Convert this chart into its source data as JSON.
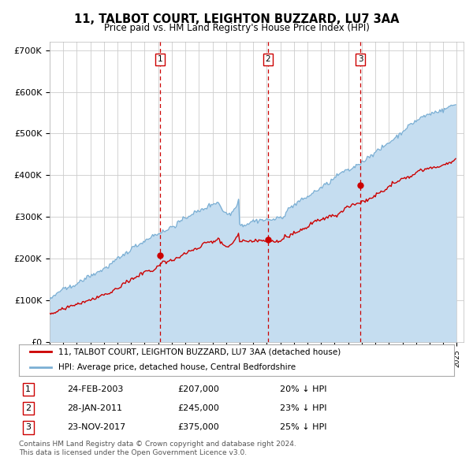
{
  "title": "11, TALBOT COURT, LEIGHTON BUZZARD, LU7 3AA",
  "subtitle": "Price paid vs. HM Land Registry's House Price Index (HPI)",
  "title_fontsize": 10.5,
  "subtitle_fontsize": 8.5,
  "ylim": [
    0,
    720000
  ],
  "yticks": [
    0,
    100000,
    200000,
    300000,
    400000,
    500000,
    600000,
    700000
  ],
  "ytick_labels": [
    "£0",
    "£100K",
    "£200K",
    "£300K",
    "£400K",
    "£500K",
    "£600K",
    "£700K"
  ],
  "background_color": "#ffffff",
  "plot_bg_color": "#ffffff",
  "hpi_color": "#7bafd4",
  "hpi_fill_color": "#c5ddf0",
  "price_color": "#cc0000",
  "marker_color": "#cc0000",
  "vline_color": "#cc0000",
  "grid_color": "#cccccc",
  "sales": [
    {
      "date_num": 2003.12,
      "price": 207000,
      "label": "1",
      "date_str": "24-FEB-2003",
      "pct": "20%"
    },
    {
      "date_num": 2011.07,
      "price": 245000,
      "label": "2",
      "date_str": "28-JAN-2011",
      "pct": "23%"
    },
    {
      "date_num": 2017.9,
      "price": 375000,
      "label": "3",
      "date_str": "23-NOV-2017",
      "pct": "25%"
    }
  ],
  "footer": "Contains HM Land Registry data © Crown copyright and database right 2024.\nThis data is licensed under the Open Government Licence v3.0.",
  "legend_entries": [
    "11, TALBOT COURT, LEIGHTON BUZZARD, LU7 3AA (detached house)",
    "HPI: Average price, detached house, Central Bedfordshire"
  ]
}
